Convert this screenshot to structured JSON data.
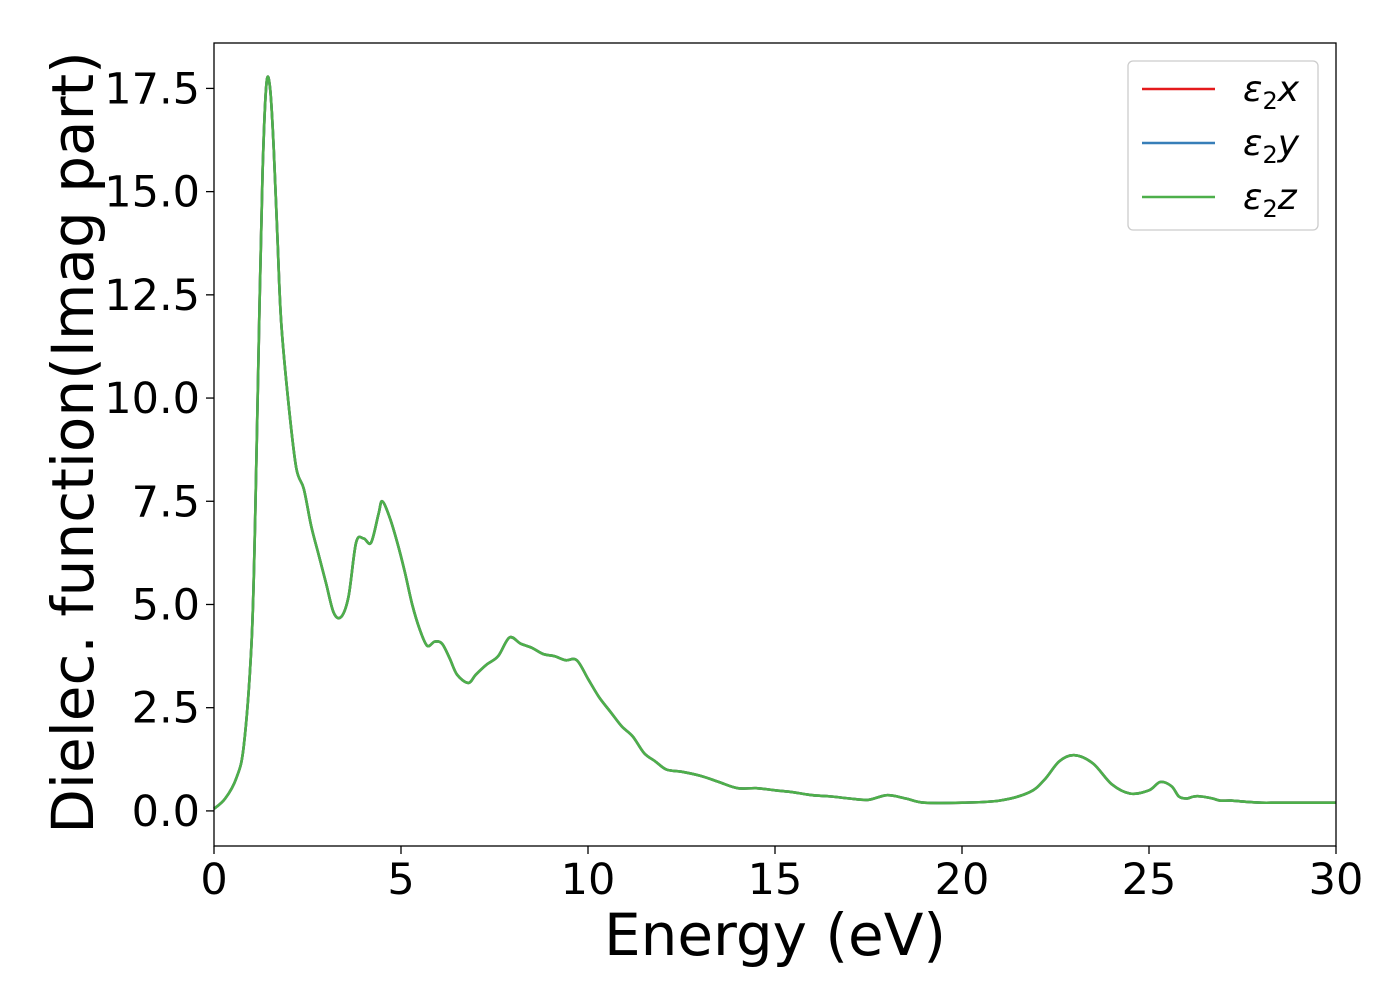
{
  "chart_data": {
    "type": "line",
    "xlabel": "Energy (eV)",
    "ylabel": "Dielec. function(Imag part)",
    "xlim": [
      0,
      30
    ],
    "ylim": [
      -0.85,
      18.6
    ],
    "xticks": [
      0,
      5,
      10,
      15,
      20,
      25,
      30
    ],
    "xtick_labels": [
      "0",
      "5",
      "10",
      "15",
      "20",
      "25",
      "30"
    ],
    "yticks": [
      0.0,
      2.5,
      5.0,
      7.5,
      10.0,
      12.5,
      15.0,
      17.5
    ],
    "ytick_labels": [
      "0.0",
      "2.5",
      "5.0",
      "7.5",
      "10.0",
      "12.5",
      "15.0",
      "17.5"
    ],
    "grid": false,
    "legend_position": "top-right",
    "legend": [
      {
        "symbol": "ε",
        "sub": "2",
        "suffix": "x",
        "color": "#e41a1c"
      },
      {
        "symbol": "ε",
        "sub": "2",
        "suffix": "y",
        "color": "#377eb8"
      },
      {
        "symbol": "ε",
        "sub": "2",
        "suffix": "z",
        "color": "#4daf4a"
      }
    ],
    "x": [
      0,
      0.3,
      0.6,
      0.8,
      1.0,
      1.1,
      1.2,
      1.3,
      1.4,
      1.5,
      1.6,
      1.7,
      1.8,
      2.0,
      2.2,
      2.4,
      2.6,
      2.8,
      3.0,
      3.2,
      3.4,
      3.6,
      3.8,
      4.0,
      4.2,
      4.4,
      4.5,
      4.7,
      4.9,
      5.1,
      5.3,
      5.5,
      5.7,
      5.9,
      6.1,
      6.3,
      6.5,
      6.8,
      7.0,
      7.3,
      7.6,
      7.9,
      8.2,
      8.5,
      8.8,
      9.1,
      9.4,
      9.7,
      10.0,
      10.3,
      10.6,
      10.9,
      11.2,
      11.5,
      11.8,
      12.1,
      12.5,
      13.0,
      13.5,
      14.0,
      14.5,
      15.0,
      15.5,
      16.0,
      16.5,
      17.0,
      17.5,
      18.0,
      18.5,
      19.0,
      20.0,
      21.0,
      21.8,
      22.2,
      22.6,
      23.0,
      23.5,
      24.0,
      24.5,
      25.0,
      25.3,
      25.6,
      25.8,
      26.0,
      26.2,
      26.4,
      26.7,
      26.9,
      27.2,
      27.6,
      28.0,
      28.4,
      28.8,
      29.2,
      30.0
    ],
    "series": [
      {
        "name": "ε2x",
        "color": "#e41a1c",
        "values": [
          0.05,
          0.3,
          0.8,
          1.6,
          4.0,
          7.0,
          11.5,
          15.5,
          17.6,
          17.5,
          16.0,
          13.8,
          11.8,
          9.8,
          8.3,
          7.8,
          6.9,
          6.2,
          5.5,
          4.8,
          4.7,
          5.2,
          6.5,
          6.6,
          6.5,
          7.2,
          7.5,
          7.1,
          6.5,
          5.8,
          5.0,
          4.4,
          4.0,
          4.1,
          4.05,
          3.7,
          3.3,
          3.1,
          3.3,
          3.55,
          3.75,
          4.2,
          4.05,
          3.95,
          3.8,
          3.75,
          3.65,
          3.65,
          3.2,
          2.75,
          2.4,
          2.05,
          1.8,
          1.4,
          1.2,
          1.0,
          0.95,
          0.85,
          0.7,
          0.55,
          0.55,
          0.5,
          0.45,
          0.38,
          0.35,
          0.3,
          0.27,
          0.38,
          0.3,
          0.2,
          0.2,
          0.25,
          0.45,
          0.75,
          1.2,
          1.35,
          1.15,
          0.65,
          0.42,
          0.5,
          0.7,
          0.6,
          0.35,
          0.3,
          0.35,
          0.35,
          0.3,
          0.25,
          0.25,
          0.22,
          0.2,
          0.2,
          0.2,
          0.2,
          0.2
        ]
      },
      {
        "name": "ε2y",
        "color": "#377eb8",
        "values": [
          0.05,
          0.3,
          0.8,
          1.6,
          4.0,
          7.0,
          11.5,
          15.5,
          17.6,
          17.5,
          16.0,
          13.8,
          11.8,
          9.8,
          8.3,
          7.8,
          6.9,
          6.2,
          5.5,
          4.8,
          4.7,
          5.2,
          6.5,
          6.6,
          6.5,
          7.2,
          7.5,
          7.1,
          6.5,
          5.8,
          5.0,
          4.4,
          4.0,
          4.1,
          4.05,
          3.7,
          3.3,
          3.1,
          3.3,
          3.55,
          3.75,
          4.2,
          4.05,
          3.95,
          3.8,
          3.75,
          3.65,
          3.65,
          3.2,
          2.75,
          2.4,
          2.05,
          1.8,
          1.4,
          1.2,
          1.0,
          0.95,
          0.85,
          0.7,
          0.55,
          0.55,
          0.5,
          0.45,
          0.38,
          0.35,
          0.3,
          0.27,
          0.38,
          0.3,
          0.2,
          0.2,
          0.25,
          0.45,
          0.75,
          1.2,
          1.35,
          1.15,
          0.65,
          0.42,
          0.5,
          0.7,
          0.6,
          0.35,
          0.3,
          0.35,
          0.35,
          0.3,
          0.25,
          0.25,
          0.22,
          0.2,
          0.2,
          0.2,
          0.2,
          0.2
        ]
      },
      {
        "name": "ε2z",
        "color": "#4daf4a",
        "values": [
          0.05,
          0.3,
          0.8,
          1.6,
          4.0,
          7.0,
          11.5,
          15.5,
          17.6,
          17.5,
          16.0,
          13.8,
          11.8,
          9.8,
          8.3,
          7.8,
          6.9,
          6.2,
          5.5,
          4.8,
          4.7,
          5.2,
          6.5,
          6.6,
          6.5,
          7.2,
          7.5,
          7.1,
          6.5,
          5.8,
          5.0,
          4.4,
          4.0,
          4.1,
          4.05,
          3.7,
          3.3,
          3.1,
          3.3,
          3.55,
          3.75,
          4.2,
          4.05,
          3.95,
          3.8,
          3.75,
          3.65,
          3.65,
          3.2,
          2.75,
          2.4,
          2.05,
          1.8,
          1.4,
          1.2,
          1.0,
          0.95,
          0.85,
          0.7,
          0.55,
          0.55,
          0.5,
          0.45,
          0.38,
          0.35,
          0.3,
          0.27,
          0.38,
          0.3,
          0.2,
          0.2,
          0.25,
          0.45,
          0.75,
          1.2,
          1.35,
          1.15,
          0.65,
          0.42,
          0.5,
          0.7,
          0.6,
          0.35,
          0.3,
          0.35,
          0.35,
          0.3,
          0.25,
          0.25,
          0.22,
          0.2,
          0.2,
          0.2,
          0.2,
          0.2
        ]
      }
    ]
  }
}
